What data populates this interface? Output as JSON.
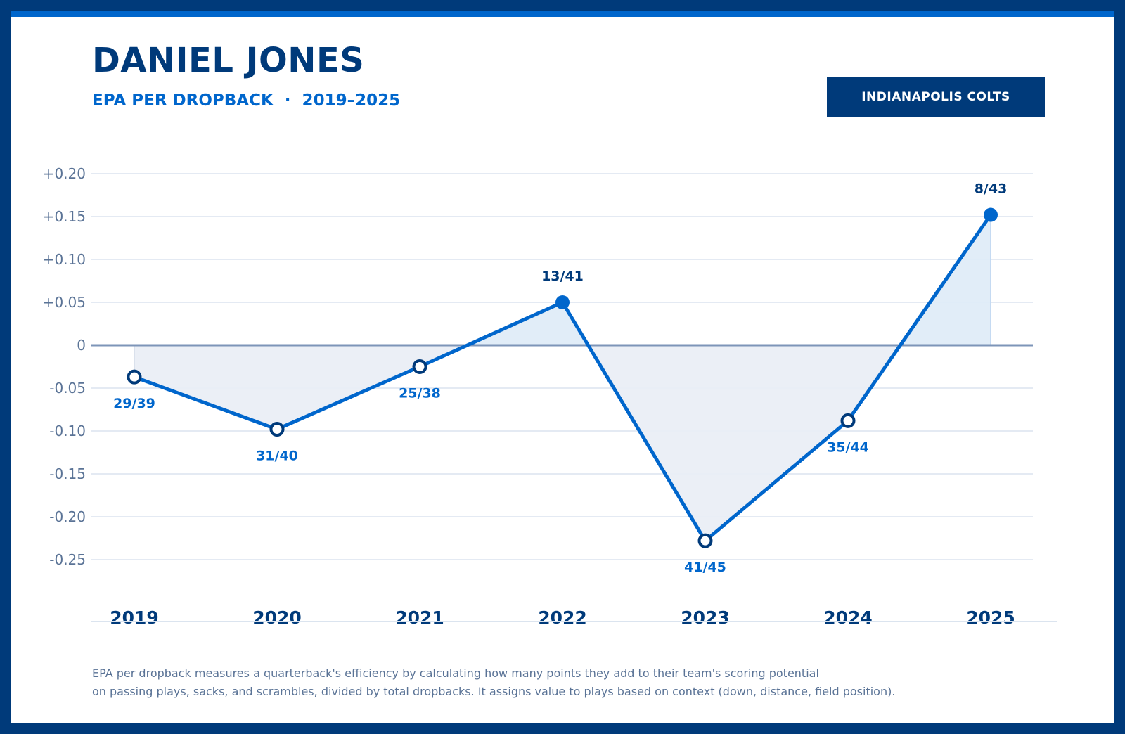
{
  "header": {
    "title": "DANIEL JONES",
    "subtitle": "EPA PER DROPBACK  ·  2019–2025",
    "team_badge": "INDIANAPOLIS COLTS"
  },
  "colors": {
    "navy": "#003a7a",
    "accent": "#0066cc",
    "positive_fill": "#deebf7",
    "negative_fill": "#e9edf5"
  },
  "chart_data": {
    "type": "line",
    "title": "",
    "xlabel": "",
    "ylabel": "",
    "categories": [
      "2019",
      "2020",
      "2021",
      "2022",
      "2023",
      "2024",
      "2025"
    ],
    "values": [
      -0.037,
      -0.098,
      -0.025,
      0.05,
      -0.228,
      -0.088,
      0.152
    ],
    "point_labels": [
      "29/39",
      "31/40",
      "25/38",
      "13/41",
      "41/45",
      "35/44",
      "8/43"
    ],
    "ylim": [
      -0.25,
      0.2
    ],
    "yticks": [
      0.2,
      0.15,
      0.1,
      0.05,
      0,
      -0.05,
      -0.1,
      -0.15,
      -0.2,
      -0.25
    ],
    "ytick_labels": [
      "+0.20",
      "+0.15",
      "+0.10",
      "+0.05",
      "0",
      "-0.05",
      "-0.10",
      "-0.15",
      "-0.20",
      "-0.25"
    ],
    "grid": true,
    "area_fill_to_zero": true
  },
  "footer": {
    "line1": "EPA per dropback measures a quarterback's efficiency by calculating how many points they add to their team's scoring potential",
    "line2": "on passing plays, sacks, and scrambles, divided by total dropbacks. It assigns value to plays based on context (down, distance, field position)."
  }
}
